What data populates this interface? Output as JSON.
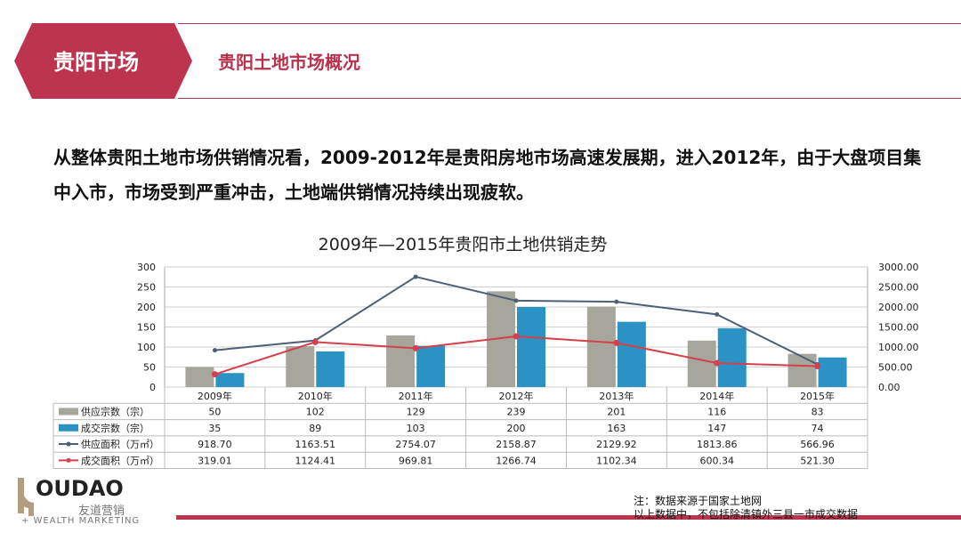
{
  "header": {
    "section": "贵阳市场",
    "subtitle": "贵阳土地市场概况"
  },
  "intro": "从整体贵阳土地市场供销情况看，2009-2012年是贵阳房地市场高速发展期，进入2012年，由于大盘项目集中入市，市场受到严重冲击，土地端供销情况持续出现疲软。",
  "chart_data": {
    "type": "bar+line",
    "title": "2009年—2015年贵阳市土地供销走势",
    "categories": [
      "2009年",
      "2010年",
      "2011年",
      "2012年",
      "2013年",
      "2014年",
      "2015年"
    ],
    "ylim_left": [
      0,
      300
    ],
    "yticks_left": [
      "0",
      "50",
      "100",
      "150",
      "200",
      "250",
      "300"
    ],
    "ylim_right": [
      0,
      3000
    ],
    "yticks_right": [
      "0.00",
      "500.00",
      "1000.00",
      "1500.00",
      "2000.00",
      "2500.00",
      "3000.00"
    ],
    "grid": true,
    "legend": "data-table",
    "series": [
      {
        "name": "供应宗数（宗）",
        "type": "bar",
        "axis": "left",
        "color": "#a6a69c",
        "values": [
          50,
          102,
          129,
          239,
          201,
          116,
          83
        ],
        "labels": [
          "50",
          "102",
          "129",
          "239",
          "201",
          "116",
          "83"
        ]
      },
      {
        "name": "成交宗数（宗）",
        "type": "bar",
        "axis": "left",
        "color": "#2a93c4",
        "values": [
          35,
          89,
          103,
          200,
          163,
          147,
          74
        ],
        "labels": [
          "35",
          "89",
          "103",
          "200",
          "163",
          "147",
          "74"
        ]
      },
      {
        "name": "供应面积（万㎡）",
        "type": "line",
        "axis": "right",
        "color": "#4f5f78",
        "values": [
          918.7,
          1163.51,
          2754.07,
          2158.87,
          2129.92,
          1813.86,
          566.96
        ],
        "labels": [
          "918.70",
          "1163.51",
          "2754.07",
          "2158.87",
          "2129.92",
          "1813.86",
          "566.96"
        ]
      },
      {
        "name": "成交面积（万㎡）",
        "type": "line",
        "axis": "right",
        "color": "#d5404a",
        "values": [
          319.01,
          1124.41,
          969.81,
          1266.74,
          1102.34,
          600.34,
          521.3
        ],
        "labels": [
          "319.01",
          "1124.41",
          "969.81",
          "1266.74",
          "1102.34",
          "600.34",
          "521.30"
        ]
      }
    ]
  },
  "logo": {
    "text": "YOUDAO",
    "cn": "友道营销",
    "en": "+ WEALTH MARKETING"
  },
  "note": {
    "line1": "注：数据来源于国家土地网",
    "line2": "以上数据中，不包括除清镇外三县一市成交数据"
  }
}
